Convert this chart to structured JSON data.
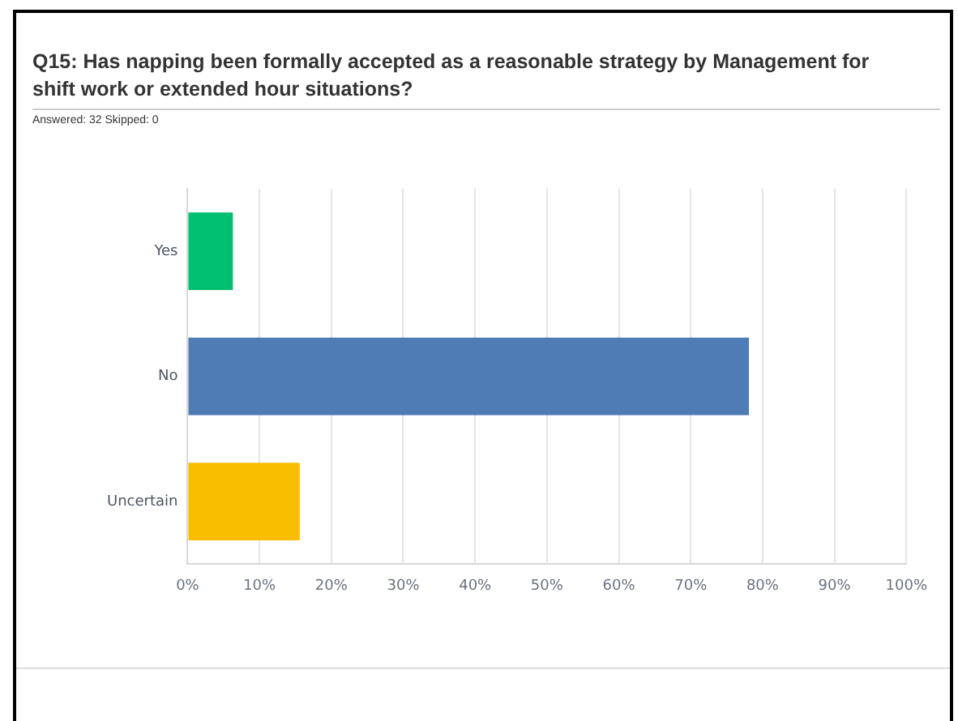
{
  "chart_data": {
    "type": "bar",
    "orientation": "horizontal",
    "title": "Q15: Has napping been formally accepted as a reasonable strategy by Management for shift work or extended hour situations?",
    "subtitle": "Answered: 32    Skipped: 0",
    "categories": [
      "Yes",
      "No",
      "Uncertain"
    ],
    "values": [
      6.3,
      78.1,
      15.6
    ],
    "colors": [
      "#00bf6f",
      "#507cb6",
      "#f9be00"
    ],
    "xlim": [
      0,
      100
    ],
    "xticks": [
      {
        "value": 0,
        "label": "0%"
      },
      {
        "value": 10,
        "label": "10%"
      },
      {
        "value": 20,
        "label": "20%"
      },
      {
        "value": 30,
        "label": "30%"
      },
      {
        "value": 40,
        "label": "40%"
      },
      {
        "value": 50,
        "label": "50%"
      },
      {
        "value": 60,
        "label": "60%"
      },
      {
        "value": 70,
        "label": "70%"
      },
      {
        "value": 80,
        "label": "80%"
      },
      {
        "value": 90,
        "label": "90%"
      },
      {
        "value": 100,
        "label": "100%"
      }
    ],
    "grid": "x",
    "legend": false
  }
}
